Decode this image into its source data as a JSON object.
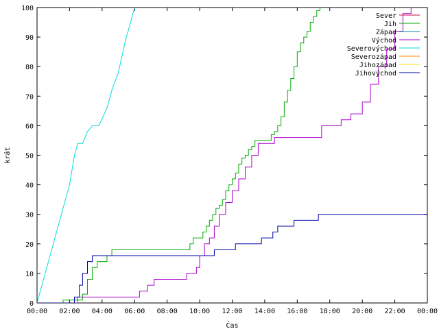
{
  "chart_data": {
    "type": "line",
    "xlabel": "Čas",
    "ylabel": "krát",
    "xlim": [
      0,
      24
    ],
    "ylim": [
      0,
      100
    ],
    "x_ticks": [
      "00:00",
      "02:00",
      "04:00",
      "06:00",
      "08:00",
      "10:00",
      "12:00",
      "14:00",
      "16:00",
      "18:00",
      "20:00",
      "22:00",
      "00:00"
    ],
    "y_ticks": [
      0,
      10,
      20,
      30,
      40,
      50,
      60,
      70,
      80,
      90,
      100
    ],
    "grid": false,
    "legend_position": "top-right",
    "series": [
      {
        "name": "Sever",
        "color": "#cc0044",
        "step": false,
        "x": [],
        "y": []
      },
      {
        "name": "Jih",
        "color": "#00aa00",
        "step": true,
        "x": [
          0.0,
          1.6,
          2.5,
          2.8,
          3.1,
          3.4,
          3.7,
          4.3,
          4.6,
          9.2,
          9.4,
          9.6,
          9.8,
          10.2,
          10.4,
          10.6,
          10.8,
          11.0,
          11.2,
          11.4,
          11.6,
          11.8,
          12.0,
          12.2,
          12.4,
          12.6,
          12.8,
          13.0,
          13.2,
          13.4,
          13.6,
          14.4,
          14.6,
          14.8,
          15.0,
          15.2,
          15.4,
          15.6,
          15.8,
          16.0,
          16.2,
          16.4,
          16.6,
          16.8,
          17.0,
          17.2,
          17.4
        ],
        "y": [
          0,
          1,
          1,
          3,
          8,
          12,
          14,
          16,
          18,
          18,
          20,
          22,
          22,
          24,
          26,
          28,
          30,
          32,
          33,
          35,
          38,
          40,
          42,
          44,
          47,
          49,
          50,
          52,
          53,
          55,
          55,
          57,
          58,
          60,
          63,
          68,
          72,
          76,
          80,
          85,
          88,
          90,
          92,
          95,
          97,
          99,
          100
        ]
      },
      {
        "name": "Západ",
        "color": "#0088aa",
        "step": false,
        "x": [],
        "y": []
      },
      {
        "name": "Východ",
        "color": "#aa00cc",
        "step": true,
        "x": [
          0.0,
          2.5,
          5.9,
          6.3,
          6.8,
          7.2,
          8.5,
          9.2,
          9.8,
          10.0,
          10.3,
          10.6,
          10.9,
          11.2,
          11.6,
          12.0,
          12.4,
          12.8,
          13.2,
          13.6,
          14.2,
          14.6,
          16.0,
          17.5,
          18.7,
          19.3,
          20.0,
          20.5,
          21.0,
          21.5,
          22.0,
          22.5,
          23.0
        ],
        "y": [
          0,
          2,
          2,
          4,
          6,
          8,
          8,
          10,
          12,
          16,
          20,
          22,
          26,
          30,
          34,
          38,
          42,
          46,
          50,
          54,
          54,
          56,
          56,
          60,
          62,
          64,
          68,
          74,
          80,
          86,
          92,
          98,
          100
        ]
      },
      {
        "name": "Severovýchod",
        "color": "#00dddd",
        "step": false,
        "x": [
          0.0,
          0.5,
          1.0,
          1.5,
          2.0,
          2.3,
          2.5,
          2.8,
          3.1,
          3.4,
          3.8,
          4.3,
          4.6,
          5.0,
          5.4,
          5.8,
          6.0
        ],
        "y": [
          0,
          10,
          20,
          30,
          40,
          50,
          54,
          54,
          58,
          60,
          60,
          66,
          72,
          78,
          88,
          96,
          100
        ]
      },
      {
        "name": "Severozápad",
        "color": "#ff8800",
        "step": false,
        "x": [],
        "y": []
      },
      {
        "name": "Jihozápad",
        "color": "#ffdd00",
        "step": false,
        "x": [],
        "y": []
      },
      {
        "name": "Jihovýchod",
        "color": "#0000aa",
        "step": true,
        "x": [
          0.0,
          2.3,
          2.6,
          2.8,
          3.1,
          3.4,
          8.3,
          10.9,
          12.2,
          13.8,
          14.5,
          14.8,
          15.8,
          17.3,
          24.0
        ],
        "y": [
          0,
          2,
          6,
          10,
          14,
          16,
          16,
          18,
          20,
          22,
          24,
          26,
          28,
          30,
          30
        ]
      }
    ]
  }
}
